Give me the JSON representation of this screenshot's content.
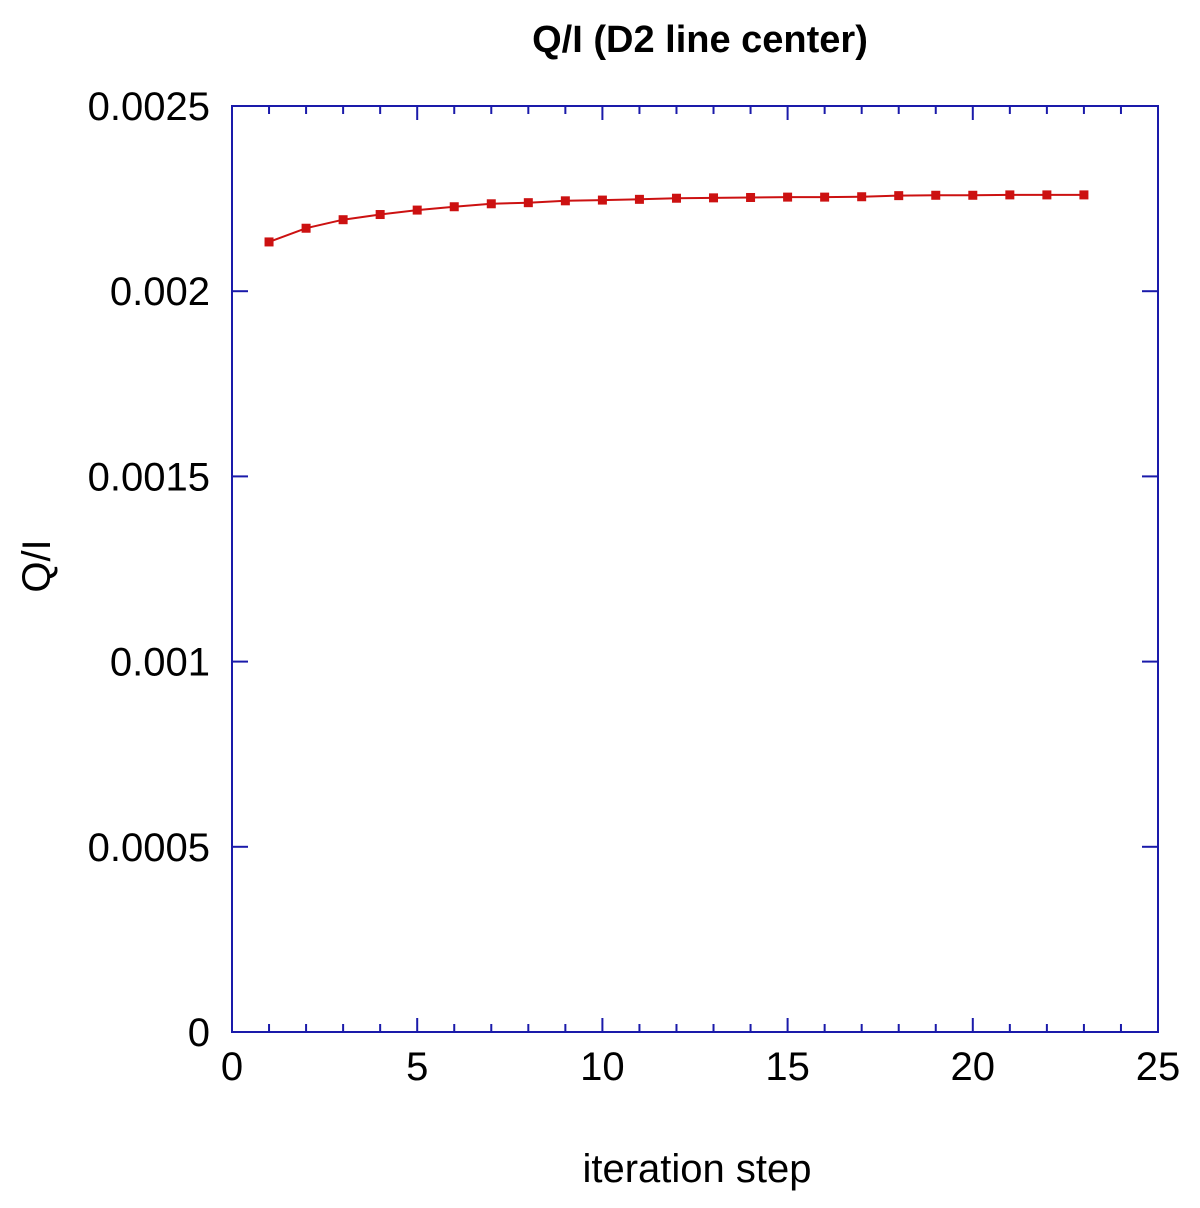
{
  "chart_data": {
    "type": "line",
    "title": "Q/I (D2 line center)",
    "xlabel": "iteration step",
    "ylabel": "Q/I",
    "xlim": [
      0,
      25
    ],
    "ylim": [
      0,
      0.0025
    ],
    "xticks": [
      "0",
      "5",
      "10",
      "15",
      "20",
      "25"
    ],
    "xtick_values": [
      0,
      5,
      10,
      15,
      20,
      25
    ],
    "yticks": [
      "0",
      "0.0005",
      "0.001",
      "0.0015",
      "0.002",
      "0.0025"
    ],
    "ytick_values": [
      0,
      0.0005,
      0.001,
      0.0015,
      0.002,
      0.0025
    ],
    "grid": false,
    "series": [
      {
        "x": [
          1,
          2,
          3,
          4,
          5,
          6,
          7,
          8,
          9,
          10,
          11,
          12,
          13,
          14,
          15,
          16,
          17,
          18,
          19,
          20,
          21,
          22,
          23
        ],
        "y": [
          0.002133,
          0.00217,
          0.002193,
          0.002207,
          0.002219,
          0.002228,
          0.002236,
          0.002239,
          0.002244,
          0.002246,
          0.002248,
          0.002251,
          0.002252,
          0.002253,
          0.002254,
          0.002254,
          0.002255,
          0.002258,
          0.002259,
          0.002259,
          0.00226,
          0.00226,
          0.00226
        ],
        "marker": "square"
      }
    ],
    "colors": {
      "axis": "#1a1aaa",
      "line": "#cc1111"
    }
  }
}
